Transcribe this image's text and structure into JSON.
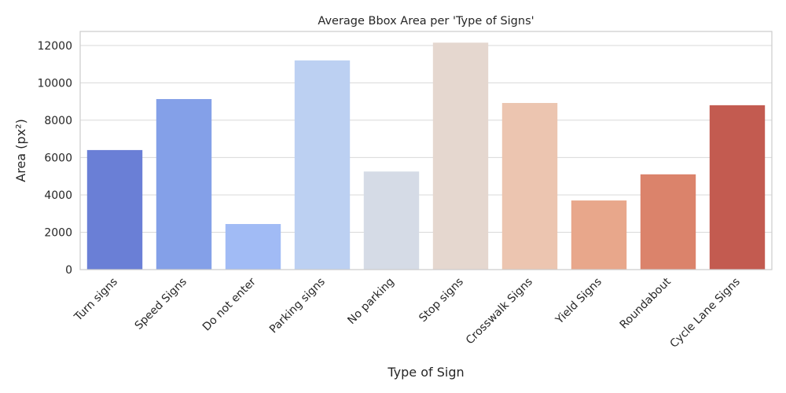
{
  "chart_data": {
    "type": "bar",
    "title": "Average Bbox Area per 'Type of Signs'",
    "xlabel": "Type of Sign",
    "ylabel": "Area (px²)",
    "categories": [
      "Turn signs",
      "Speed Signs",
      "Do not enter",
      "Parking signs",
      "No parking",
      "Stop signs",
      "Crosswalk Signs",
      "Yield Signs",
      "Roundabout",
      "Cycle Lane Signs"
    ],
    "values": [
      6400,
      9130,
      2440,
      11200,
      5250,
      12150,
      8920,
      3700,
      5100,
      8800
    ],
    "colors": [
      "#6a7fd6",
      "#84a0e8",
      "#a1bbf5",
      "#bcd0f2",
      "#d5dbe6",
      "#e5d7cf",
      "#ecc5b0",
      "#e8a78b",
      "#db836b",
      "#c35b50"
    ],
    "ylim": [
      0,
      12750
    ],
    "yticks": [
      0,
      2000,
      4000,
      6000,
      8000,
      10000,
      12000
    ],
    "grid": true,
    "legend": "none"
  }
}
